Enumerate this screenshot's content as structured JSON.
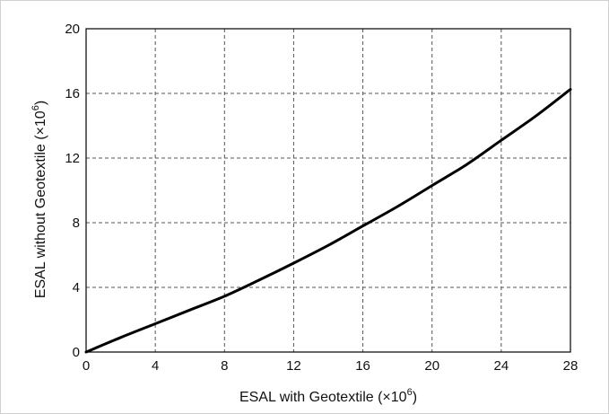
{
  "chart_data": {
    "type": "line",
    "title": "",
    "xlabel": "ESAL with Geotextile (×10",
    "xlabel_exp": "6",
    "ylabel": "ESAL without Geotextile (×10",
    "ylabel_exp": "6",
    "xlim": [
      0,
      28
    ],
    "ylim": [
      0,
      20
    ],
    "xticks": [
      0,
      4,
      8,
      12,
      16,
      20,
      24,
      28
    ],
    "yticks": [
      0,
      4,
      8,
      12,
      16,
      20
    ],
    "grid": true,
    "legend": "none",
    "series": [
      {
        "color": "#000000",
        "x": [
          0,
          2,
          4,
          6,
          8,
          10,
          12,
          14,
          16,
          18,
          20,
          22,
          24,
          26,
          28
        ],
        "y": [
          0,
          0.9,
          1.75,
          2.6,
          3.45,
          4.45,
          5.5,
          6.6,
          7.8,
          9.0,
          10.3,
          11.6,
          13.1,
          14.6,
          16.25
        ]
      }
    ]
  }
}
